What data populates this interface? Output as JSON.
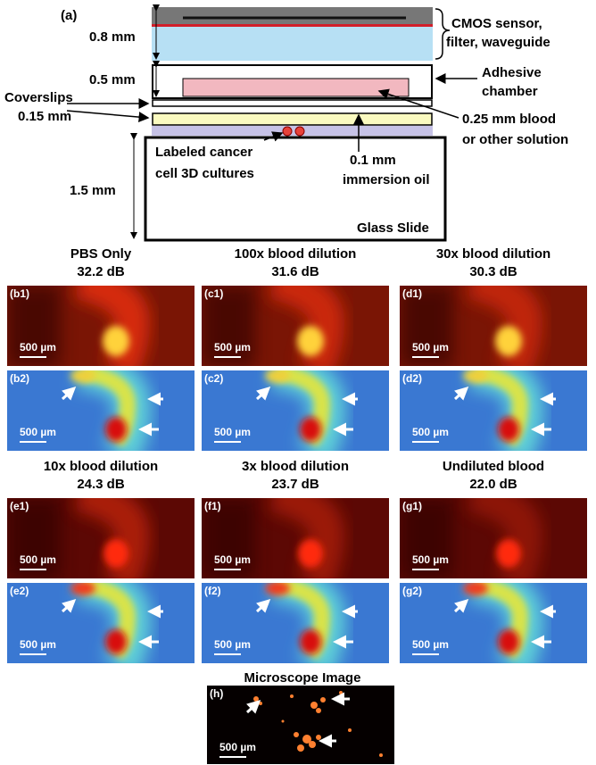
{
  "panel_a": {
    "label": "(a)",
    "dim_sensor": "0.8 mm",
    "dim_chamber": "0.5 mm",
    "coverslips": "Coverslips",
    "dim_coverslip": "0.15 mm",
    "dim_slide": "1.5 mm",
    "sensor_line1": "CMOS sensor,",
    "sensor_line2": "filter, waveguide",
    "chamber_line1": "Adhesive",
    "chamber_line2": "chamber",
    "blood_line1": "0.25 mm blood",
    "blood_line2": "or other solution",
    "oil_line1": "0.1 mm",
    "oil_line2": "immersion oil",
    "cells_line1": "Labeled cancer",
    "cells_line2": "cell 3D cultures",
    "slide": "Glass Slide"
  },
  "panels": [
    {
      "title": "PBS Only",
      "snr": "32.2 dB",
      "label1": "(b1)",
      "label2": "(b2)"
    },
    {
      "title": "100x blood dilution",
      "snr": "31.6 dB",
      "label1": "(c1)",
      "label2": "(c2)"
    },
    {
      "title": "30x blood dilution",
      "snr": "30.3 dB",
      "label1": "(d1)",
      "label2": "(d2)"
    },
    {
      "title": "10x blood dilution",
      "snr": "24.3 dB",
      "label1": "(e1)",
      "label2": "(e2)"
    },
    {
      "title": "3x blood dilution",
      "snr": "23.7 dB",
      "label1": "(f1)",
      "label2": "(f2)"
    },
    {
      "title": "Undiluted blood",
      "snr": "22.0 dB",
      "label1": "(g1)",
      "label2": "(g2)"
    }
  ],
  "scale_bar": "500 µm",
  "microscope": {
    "title": "Microscope Image",
    "label": "(h)"
  }
}
